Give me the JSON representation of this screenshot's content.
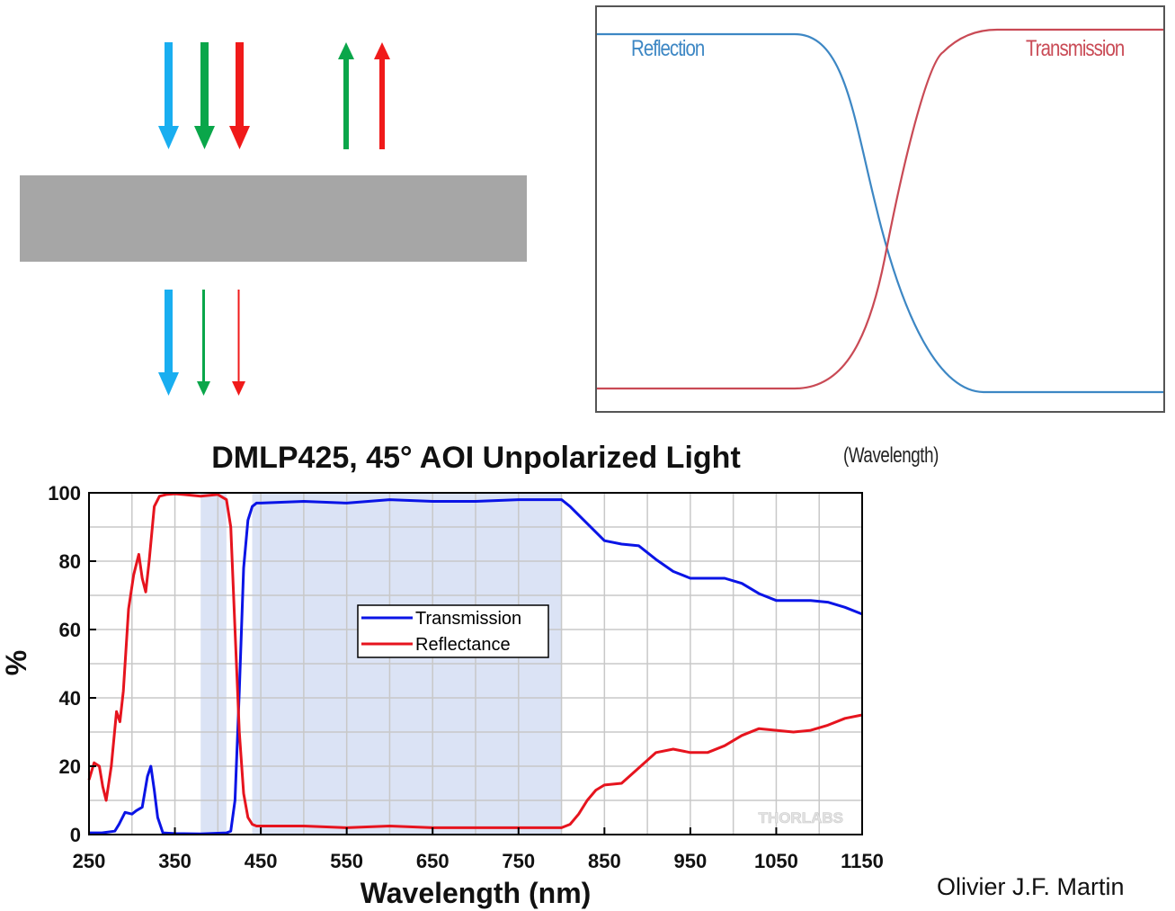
{
  "colors": {
    "blue_beam": "#19aef0",
    "green_beam": "#0aa64a",
    "red_beam": "#f01a1a",
    "plate": "#a6a6a6",
    "reflection_curve": "#3d87c4",
    "transmission_curve": "#c94a55",
    "transmission_series": "#0a14e6",
    "reflectance_series": "#e6141e",
    "band_shade": "#dbe3f5",
    "grid": "#c8c8c8"
  },
  "schematic": {
    "reflection_label": "Reflection",
    "transmission_label": "Transmission",
    "axis_note": "(Wavelength)"
  },
  "credit": "Olivier J.F. Martin",
  "chart_data": {
    "type": "line",
    "title": "DMLP425, 45° AOI Unpolarized Light",
    "xlabel": "Wavelength (nm)",
    "ylabel": "%",
    "xlim": [
      250,
      1150
    ],
    "ylim": [
      0,
      100
    ],
    "xticks": [
      250,
      350,
      450,
      550,
      650,
      750,
      850,
      950,
      1050,
      1150
    ],
    "yticks": [
      0,
      20,
      40,
      60,
      80,
      100
    ],
    "grid": true,
    "legend": "center",
    "watermark": "THORLABS",
    "shaded_bands": [
      [
        380,
        410
      ],
      [
        440,
        800
      ]
    ],
    "series": [
      {
        "name": "Transmission",
        "color": "#0a14e6",
        "x": [
          250,
          265,
          280,
          285,
          292,
          300,
          305,
          312,
          318,
          322,
          326,
          330,
          336,
          350,
          380,
          410,
          415,
          420,
          425,
          430,
          435,
          440,
          445,
          450,
          500,
          550,
          600,
          650,
          700,
          750,
          800,
          810,
          830,
          850,
          870,
          890,
          910,
          930,
          950,
          970,
          990,
          1010,
          1030,
          1050,
          1070,
          1090,
          1110,
          1130,
          1150
        ],
        "y": [
          0.5,
          0.5,
          1,
          3,
          6.5,
          6,
          7,
          8,
          17,
          20,
          13,
          5,
          0.5,
          0.3,
          0.2,
          0.5,
          1,
          10,
          42,
          78,
          92,
          96,
          97,
          97,
          97.5,
          97,
          98,
          97.5,
          97.5,
          98,
          98,
          96,
          91,
          86,
          85,
          84.5,
          80.5,
          77,
          75,
          75,
          75,
          73.5,
          70.5,
          68.5,
          68.5,
          68.5,
          68,
          66.5,
          64.5
        ]
      },
      {
        "name": "Reflectance",
        "color": "#e6141e",
        "x": [
          250,
          256,
          262,
          266,
          270,
          276,
          282,
          286,
          290,
          296,
          302,
          308,
          312,
          316,
          320,
          326,
          332,
          340,
          350,
          360,
          380,
          400,
          410,
          415,
          420,
          425,
          430,
          435,
          440,
          445,
          450,
          500,
          550,
          600,
          650,
          700,
          750,
          800,
          810,
          820,
          830,
          840,
          850,
          870,
          890,
          910,
          930,
          950,
          970,
          990,
          1010,
          1030,
          1050,
          1070,
          1090,
          1110,
          1130,
          1150
        ],
        "y": [
          16,
          21,
          20,
          14,
          10,
          20,
          36,
          33,
          42,
          66,
          76,
          82,
          75,
          71,
          80,
          96,
          99,
          99.5,
          99.7,
          99.5,
          99,
          99.5,
          98,
          90,
          60,
          30,
          12,
          5,
          3,
          2.5,
          2.5,
          2.5,
          2,
          2.5,
          2,
          2,
          2,
          2,
          3,
          6,
          10,
          13,
          14.5,
          15,
          19.5,
          24,
          25,
          24,
          24,
          26,
          29,
          31,
          30.5,
          30,
          30.5,
          32,
          34,
          35
        ]
      }
    ]
  }
}
